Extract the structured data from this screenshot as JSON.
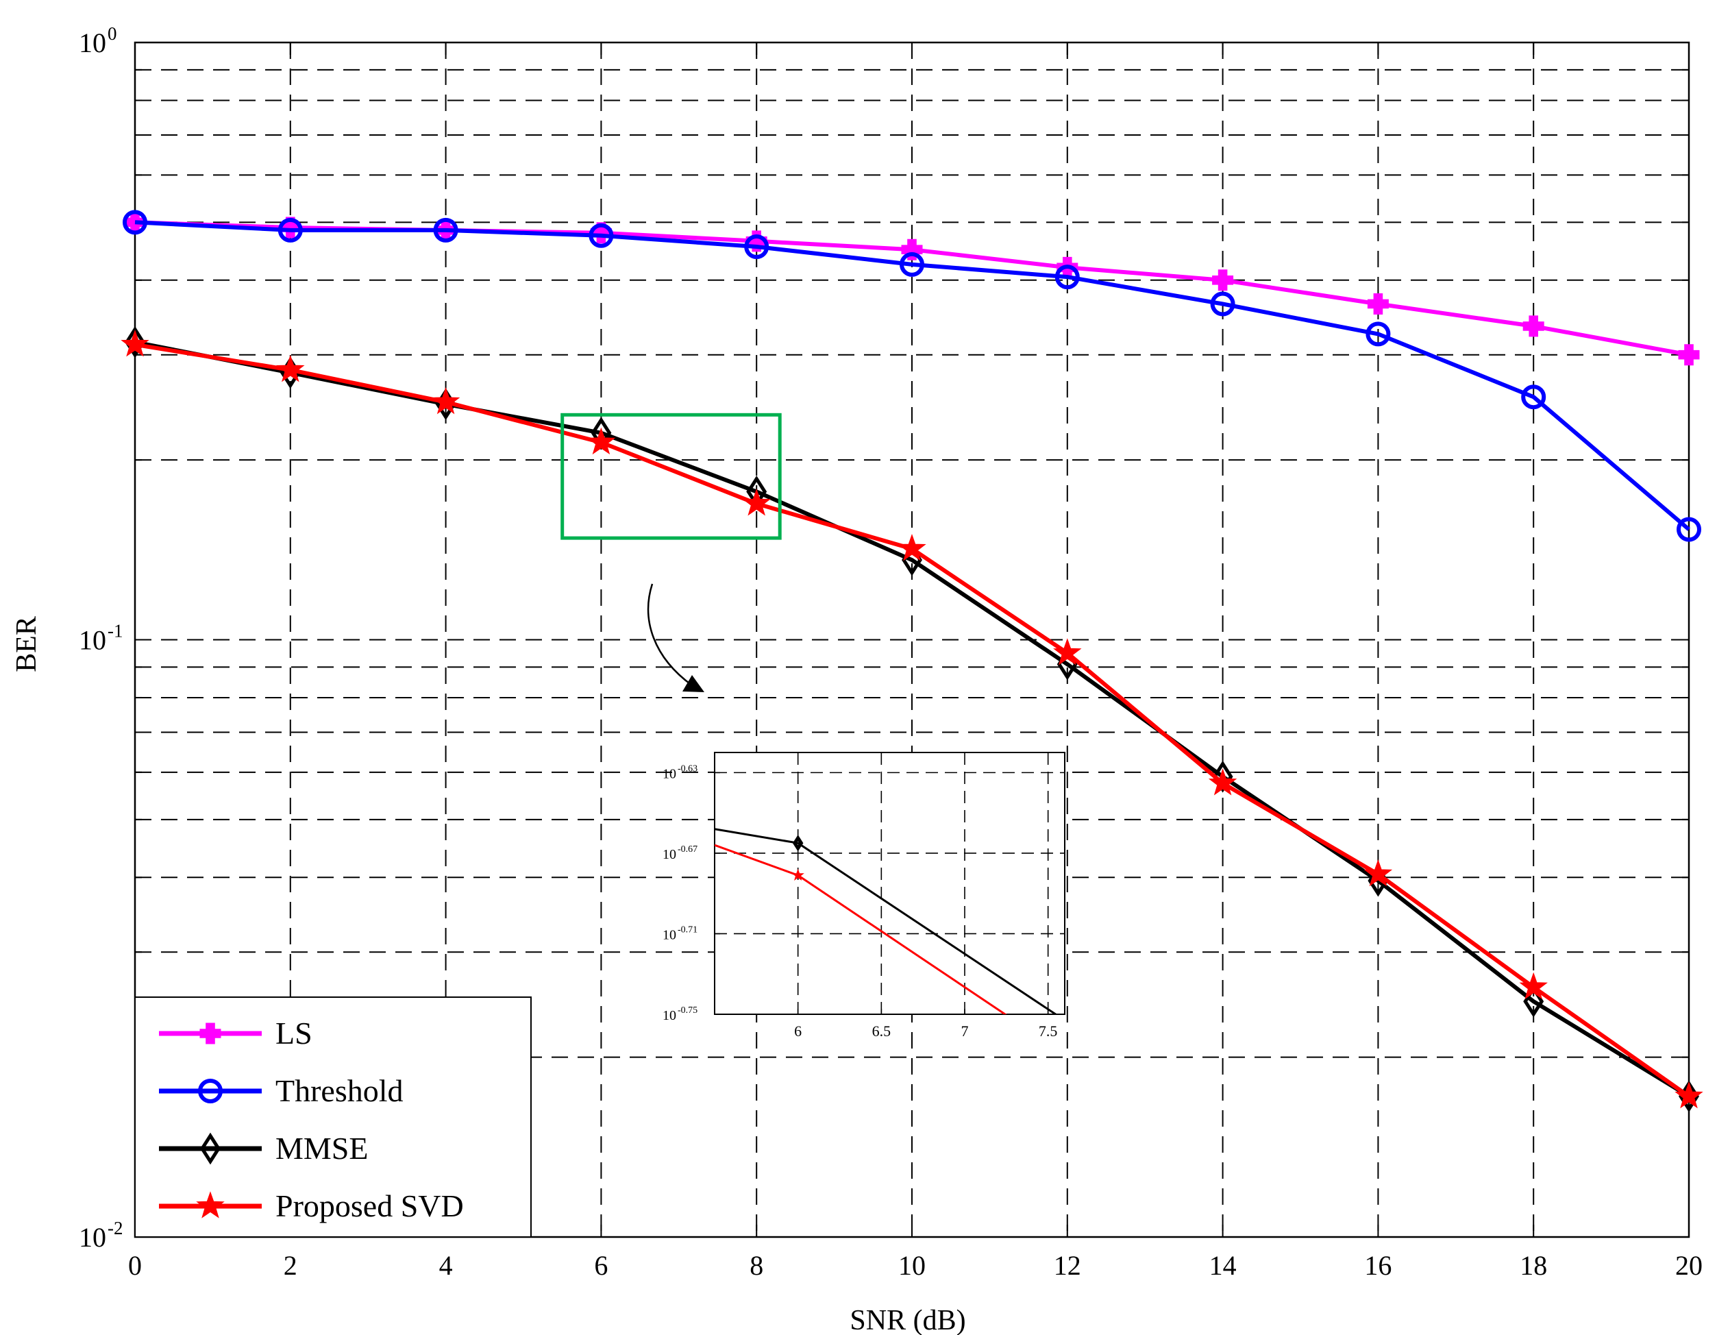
{
  "chart_data": {
    "type": "line",
    "title": "",
    "xlabel": "SNR (dB)",
    "ylabel": "BER",
    "yscale": "log",
    "xlim": [
      0,
      20
    ],
    "ylim": [
      0.01,
      1
    ],
    "grid": true,
    "x": [
      0,
      2,
      4,
      6,
      8,
      10,
      12,
      14,
      16,
      18,
      20
    ],
    "x_tick_labels": [
      "0",
      "2",
      "4",
      "6",
      "8",
      "10",
      "12",
      "14",
      "16",
      "18",
      "20"
    ],
    "y_ticks": [
      {
        "value": 1,
        "base": "10",
        "exp": "0"
      },
      {
        "value": 0.1,
        "base": "10",
        "exp": "-1"
      },
      {
        "value": 0.01,
        "base": "10",
        "exp": "-2"
      }
    ],
    "legend_position": "bottom-left",
    "series": [
      {
        "name": "LS",
        "color": "#ff00ff",
        "marker": "plus-filled",
        "values": [
          0.5,
          0.49,
          0.485,
          0.48,
          0.465,
          0.45,
          0.42,
          0.4,
          0.365,
          0.335,
          0.3
        ]
      },
      {
        "name": "Threshold",
        "color": "#0000ff",
        "marker": "circle-open",
        "values": [
          0.5,
          0.485,
          0.485,
          0.475,
          0.455,
          0.425,
          0.405,
          0.365,
          0.325,
          0.255,
          0.153
        ]
      },
      {
        "name": "MMSE",
        "color": "#000000",
        "marker": "diamond-open",
        "values": [
          0.315,
          0.28,
          0.248,
          0.222,
          0.177,
          0.136,
          0.091,
          0.059,
          0.0395,
          0.0248,
          0.0172
        ]
      },
      {
        "name": "Proposed SVD",
        "color": "#ff0000",
        "marker": "star-filled",
        "values": [
          0.312,
          0.283,
          0.25,
          0.214,
          0.169,
          0.142,
          0.095,
          0.0575,
          0.0405,
          0.0262,
          0.0172
        ]
      }
    ],
    "highlight_box": {
      "color": "#00b050",
      "x_range": [
        5.5,
        8.3
      ],
      "y_range": [
        0.148,
        0.238
      ]
    },
    "inset": {
      "xlim": [
        5.5,
        7.6
      ],
      "ylim_log10": [
        -0.75,
        -0.62
      ],
      "x_ticks": [
        "6",
        "6.5",
        "7",
        "7.5"
      ],
      "y_ticks": [
        {
          "log10": -0.63,
          "base": "10",
          "exp": "-0.63"
        },
        {
          "log10": -0.67,
          "base": "10",
          "exp": "-0.67"
        },
        {
          "log10": -0.71,
          "base": "10",
          "exp": "-0.71"
        },
        {
          "log10": -0.75,
          "base": "10",
          "exp": "-0.75"
        }
      ],
      "series": [
        {
          "name": "MMSE",
          "color": "#000000",
          "marker": "diamond-open",
          "x": [
            5.5,
            6,
            7.6
          ],
          "log10": [
            -0.658,
            -0.665,
            -0.753
          ]
        },
        {
          "name": "Proposed SVD",
          "color": "#ff0000",
          "marker": "star-filled",
          "x": [
            5.5,
            6,
            7.35
          ],
          "log10": [
            -0.666,
            -0.681,
            -0.756
          ]
        }
      ]
    }
  }
}
